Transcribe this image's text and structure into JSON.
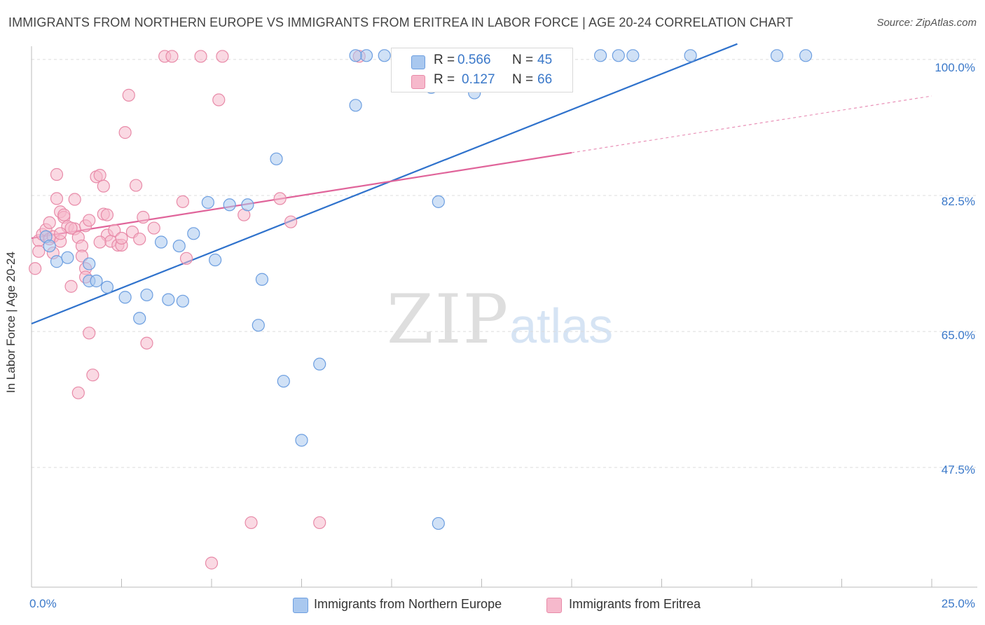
{
  "header": {
    "title": "IMMIGRANTS FROM NORTHERN EUROPE VS IMMIGRANTS FROM ERITREA IN LABOR FORCE | AGE 20-24 CORRELATION CHART",
    "source": "Source: ZipAtlas.com"
  },
  "watermark": {
    "zip": "ZIP",
    "atlas": "atlas"
  },
  "legend": {
    "rows": [
      {
        "r_label": "R =",
        "r_value": "0.566",
        "n_label": "N =",
        "n_value": "45"
      },
      {
        "r_label": "R =",
        "r_value": "0.127",
        "n_label": "N =",
        "n_value": "66"
      }
    ]
  },
  "bottom_legend": {
    "blue": "Immigrants from Northern Europe",
    "pink": "Immigrants from Eritrea"
  },
  "axes": {
    "ylabel": "In Labor Force | Age 20-24",
    "yticks": [
      "100.0%",
      "82.5%",
      "65.0%",
      "47.5%"
    ],
    "xmin_label": "0.0%",
    "xmax_label": "25.0%"
  },
  "colors": {
    "blue_fill": "#a9c8ef",
    "blue_stroke": "#6c9ee0",
    "blue_line": "#2f72cc",
    "pink_fill": "#f6b9cc",
    "pink_stroke": "#e88aa8",
    "pink_line": "#e0649a",
    "tick_text": "#3a78c9"
  },
  "chart_data": {
    "type": "scatter",
    "xlabel": "",
    "ylabel": "In Labor Force | Age 20-24",
    "xlim": [
      0,
      25
    ],
    "ylim": [
      32.1,
      101.7
    ],
    "y_ticks": [
      100.0,
      82.5,
      65.0,
      47.5
    ],
    "grid": true,
    "series": [
      {
        "name": "Immigrants from Northern Europe",
        "color": "#a9c8ef",
        "points": [
          [
            0.4,
            77.2
          ],
          [
            0.5,
            76.0
          ],
          [
            0.7,
            74.0
          ],
          [
            1.0,
            74.5
          ],
          [
            1.6,
            73.7
          ],
          [
            1.6,
            71.5
          ],
          [
            1.8,
            71.5
          ],
          [
            2.1,
            70.7
          ],
          [
            2.6,
            69.4
          ],
          [
            3.0,
            66.7
          ],
          [
            3.2,
            69.7
          ],
          [
            3.6,
            76.5
          ],
          [
            3.8,
            69.1
          ],
          [
            4.1,
            76.0
          ],
          [
            4.2,
            68.9
          ],
          [
            4.5,
            77.6
          ],
          [
            4.9,
            81.6
          ],
          [
            5.1,
            74.2
          ],
          [
            5.5,
            81.3
          ],
          [
            6.0,
            81.3
          ],
          [
            6.4,
            71.7
          ],
          [
            6.3,
            65.8
          ],
          [
            6.8,
            87.2
          ],
          [
            7.0,
            58.6
          ],
          [
            7.5,
            51.0
          ],
          [
            8.0,
            60.8
          ],
          [
            9.0,
            94.1
          ],
          [
            9.3,
            100.5
          ],
          [
            9.8,
            100.5
          ],
          [
            10.2,
            100.5
          ],
          [
            11.0,
            100.5
          ],
          [
            11.1,
            96.4
          ],
          [
            11.3,
            100.5
          ],
          [
            11.3,
            81.7
          ],
          [
            11.3,
            40.3
          ],
          [
            12.3,
            95.7
          ],
          [
            13.0,
            100.5
          ],
          [
            15.8,
            100.5
          ],
          [
            16.3,
            100.5
          ],
          [
            16.7,
            100.5
          ],
          [
            18.3,
            100.5
          ],
          [
            20.7,
            100.5
          ],
          [
            21.5,
            100.5
          ],
          [
            9.0,
            100.5
          ],
          [
            12.0,
            100.5
          ]
        ]
      },
      {
        "name": "Immigrants from Eritrea",
        "color": "#f6b9cc",
        "points": [
          [
            0.1,
            73.1
          ],
          [
            0.2,
            76.7
          ],
          [
            0.2,
            75.3
          ],
          [
            0.3,
            77.5
          ],
          [
            0.4,
            78.1
          ],
          [
            0.5,
            76.9
          ],
          [
            0.6,
            75.1
          ],
          [
            0.6,
            77.2
          ],
          [
            0.7,
            85.2
          ],
          [
            0.7,
            82.1
          ],
          [
            0.8,
            80.4
          ],
          [
            0.8,
            76.6
          ],
          [
            0.9,
            79.7
          ],
          [
            1.0,
            78.5
          ],
          [
            1.1,
            70.8
          ],
          [
            1.2,
            82.0
          ],
          [
            1.2,
            78.2
          ],
          [
            1.3,
            77.1
          ],
          [
            1.3,
            57.1
          ],
          [
            1.4,
            76.0
          ],
          [
            1.4,
            74.7
          ],
          [
            1.5,
            78.6
          ],
          [
            1.5,
            73.1
          ],
          [
            1.5,
            72.0
          ],
          [
            1.6,
            64.8
          ],
          [
            1.7,
            59.4
          ],
          [
            1.8,
            84.9
          ],
          [
            1.9,
            85.1
          ],
          [
            2.0,
            83.7
          ],
          [
            2.0,
            80.1
          ],
          [
            2.1,
            80.0
          ],
          [
            2.1,
            77.4
          ],
          [
            2.2,
            76.6
          ],
          [
            2.3,
            78.0
          ],
          [
            2.4,
            76.1
          ],
          [
            2.5,
            76.1
          ],
          [
            2.6,
            90.6
          ],
          [
            2.7,
            95.4
          ],
          [
            2.8,
            77.8
          ],
          [
            2.9,
            83.8
          ],
          [
            3.0,
            76.9
          ],
          [
            3.1,
            79.7
          ],
          [
            3.2,
            63.5
          ],
          [
            3.4,
            78.3
          ],
          [
            3.7,
            100.4
          ],
          [
            3.9,
            100.4
          ],
          [
            4.2,
            81.7
          ],
          [
            4.3,
            74.4
          ],
          [
            4.7,
            100.4
          ],
          [
            5.0,
            35.2
          ],
          [
            5.2,
            94.8
          ],
          [
            5.3,
            100.4
          ],
          [
            5.9,
            80.0
          ],
          [
            6.1,
            40.4
          ],
          [
            6.9,
            82.1
          ],
          [
            7.2,
            79.1
          ],
          [
            8.0,
            40.4
          ],
          [
            9.1,
            100.4
          ],
          [
            11.8,
            100.4
          ],
          [
            1.1,
            78.3
          ],
          [
            0.9,
            80.0
          ],
          [
            1.6,
            79.3
          ],
          [
            0.5,
            79.0
          ],
          [
            2.5,
            77.0
          ],
          [
            1.9,
            76.5
          ],
          [
            0.8,
            77.6
          ]
        ]
      }
    ],
    "trend_lines": [
      {
        "series": "Immigrants from Northern Europe",
        "x": [
          0,
          19.6
        ],
        "y": [
          66.0,
          102.0
        ]
      },
      {
        "series": "Immigrants from Eritrea",
        "x": [
          0,
          15.0
        ],
        "y": [
          77.0,
          88.0
        ],
        "extension_x": [
          15.0,
          25.0
        ],
        "extension_y": [
          88.0,
          95.3
        ]
      }
    ]
  }
}
